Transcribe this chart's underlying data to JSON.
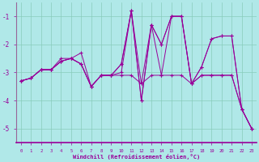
{
  "xlabel": "Windchill (Refroidissement éolien,°C)",
  "x": [
    0,
    1,
    2,
    3,
    4,
    5,
    6,
    7,
    8,
    9,
    10,
    11,
    12,
    13,
    14,
    15,
    16,
    17,
    18,
    19,
    20,
    21,
    22,
    23
  ],
  "line1": [
    -3.3,
    -3.2,
    -2.9,
    -2.9,
    -2.6,
    -2.5,
    -2.7,
    -3.5,
    -3.1,
    -3.1,
    -3.1,
    -3.1,
    -3.4,
    -3.1,
    -3.1,
    -3.1,
    -3.1,
    -3.4,
    -3.1,
    -3.1,
    -3.1,
    -3.1,
    -4.3,
    -5.0
  ],
  "line2": [
    -3.3,
    -3.2,
    -2.9,
    -2.9,
    -2.6,
    -2.5,
    -2.7,
    -3.5,
    -3.1,
    -3.1,
    -3.0,
    -0.8,
    -3.4,
    -1.3,
    -3.1,
    -1.0,
    -1.0,
    -3.4,
    -3.1,
    -3.1,
    -3.1,
    -3.1,
    -4.3,
    -5.0
  ],
  "line3": [
    -3.3,
    -3.2,
    -2.9,
    -2.9,
    -2.6,
    -2.5,
    -2.7,
    -3.5,
    -3.1,
    -3.1,
    -2.7,
    -0.8,
    -4.0,
    -1.3,
    -2.0,
    -1.0,
    -1.0,
    -3.4,
    -2.8,
    -1.8,
    -1.7,
    -1.7,
    -4.3,
    -5.0
  ],
  "line4": [
    -3.3,
    -3.2,
    -2.9,
    -2.9,
    -2.5,
    -2.5,
    -2.3,
    -3.5,
    -3.1,
    -3.1,
    -2.7,
    -0.8,
    -4.0,
    -1.3,
    -2.0,
    -1.0,
    -1.0,
    -3.4,
    -2.8,
    -1.8,
    -1.7,
    -1.7,
    -4.3,
    -5.0
  ],
  "bg_color": "#b0e8e8",
  "line_color": "#990099",
  "grid_color": "#88ccbb",
  "axis_line_color": "#996699",
  "ylim": [
    -5.5,
    -0.5
  ],
  "yticks": [
    -5,
    -4,
    -3,
    -2,
    -1
  ],
  "xticks": [
    0,
    1,
    2,
    3,
    4,
    5,
    6,
    7,
    8,
    9,
    10,
    11,
    12,
    13,
    14,
    15,
    16,
    17,
    18,
    19,
    20,
    21,
    22,
    23
  ]
}
